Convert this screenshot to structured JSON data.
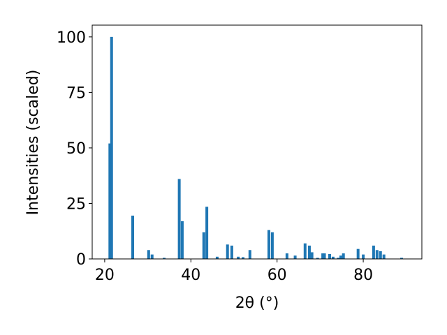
{
  "chart_data": {
    "type": "bar",
    "xlabel": "2θ (°)",
    "ylabel": "Intensities (scaled)",
    "color": "#1f77b4",
    "x": [
      21.2,
      21.6,
      26.5,
      30.2,
      31.0,
      33.8,
      37.3,
      38.0,
      43.0,
      43.7,
      46.1,
      48.5,
      49.5,
      51.0,
      52.1,
      53.7,
      58.1,
      58.9,
      62.3,
      64.2,
      66.5,
      67.5,
      68.1,
      69.4,
      70.6,
      71.0,
      72.2,
      73.0,
      74.2,
      74.8,
      75.4,
      78.8,
      80.0,
      82.4,
      83.2,
      84.0,
      84.8,
      88.9
    ],
    "values": [
      52,
      100,
      19.5,
      4,
      2,
      0.5,
      36,
      17,
      12,
      23.5,
      1,
      6.5,
      6,
      1,
      0.8,
      4,
      13,
      12,
      2.5,
      1.5,
      7,
      6,
      3,
      0.5,
      2.5,
      2.5,
      2.2,
      1,
      0.5,
      1.5,
      2.5,
      4.5,
      2,
      6,
      4,
      3.5,
      2,
      0.5
    ],
    "xlim": [
      17.1,
      93.6
    ],
    "ylim": [
      0,
      105.3
    ],
    "xticks": [
      20,
      40,
      60,
      80
    ],
    "yticks": [
      0,
      25,
      50,
      75,
      100
    ]
  }
}
